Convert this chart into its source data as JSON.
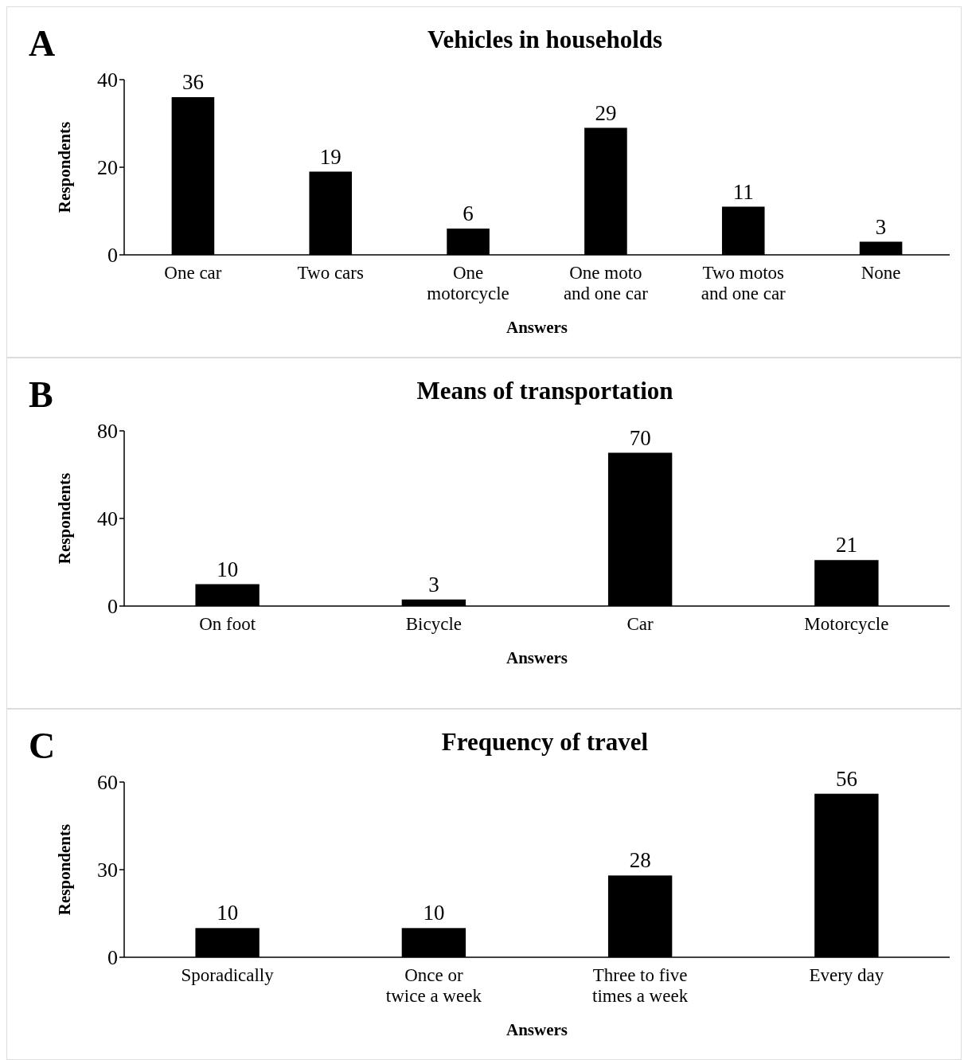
{
  "chart_data": [
    {
      "type": "bar",
      "title": "Vehicles in households",
      "xlabel": "Answers",
      "ylabel": "Respondents",
      "annotations": [
        "A"
      ],
      "categories": [
        "One car",
        "Two cars",
        "One motorcycle",
        "One moto and one car",
        "Two motos and one car",
        "None"
      ],
      "values": [
        36,
        19,
        6,
        29,
        11,
        3
      ],
      "color": "#000000",
      "ylim": [
        0,
        40
      ],
      "yticks": [
        0,
        20,
        40
      ],
      "data_labels": true
    },
    {
      "type": "bar",
      "title": "Means of transportation",
      "xlabel": "Answers",
      "ylabel": "Respondents",
      "annotations": [
        "B"
      ],
      "categories": [
        "On foot",
        "Bicycle",
        "Car",
        "Motorcycle"
      ],
      "values": [
        10,
        3,
        70,
        21
      ],
      "color": "#000000",
      "ylim": [
        0,
        80
      ],
      "yticks": [
        0,
        40,
        80
      ],
      "data_labels": true
    },
    {
      "type": "bar",
      "title": "Frequency of travel",
      "xlabel": "Answers",
      "ylabel": "Respondents",
      "annotations": [
        "C"
      ],
      "categories": [
        "Sporadically",
        "Once or twice a week",
        "Three to five times a week",
        "Every day"
      ],
      "values": [
        10,
        10,
        28,
        56
      ],
      "color": "#000000",
      "ylim": [
        0,
        60
      ],
      "yticks": [
        0,
        30,
        60
      ],
      "data_labels": true
    }
  ]
}
